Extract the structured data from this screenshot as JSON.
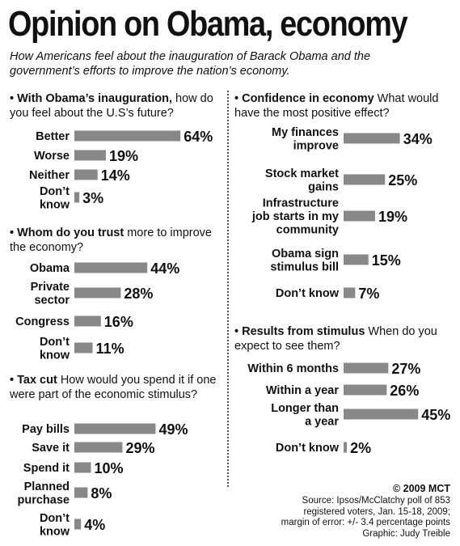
{
  "title": "Opinion on Obama, economy",
  "subtitle": "How Americans feel about the inauguration of Barack Obama and the government’s efforts to improve the nation’s economy.",
  "copyright": "© 2009 MCT",
  "source_lines": [
    "Source: Ipsos/McClatchy poll of 853",
    "registered voters, Jan. 15-18, 2009;",
    "margin of error: +/- 3.4 percentage points",
    "Graphic: Judy Treible"
  ],
  "colors": {
    "bar": "#888888",
    "text": "#111111"
  },
  "chart_data": [
    {
      "type": "bar",
      "orientation": "horizontal",
      "lead": "• With Obama’s inauguration,",
      "question": " how do you feel about the U.S’s future?",
      "categories": [
        [
          "Better"
        ],
        [
          "Worse"
        ],
        [
          "Neither"
        ],
        [
          "Don’t",
          "know"
        ]
      ],
      "values": [
        64,
        19,
        14,
        3
      ],
      "value_labels": [
        "64%",
        "19%",
        "14%",
        "3%"
      ],
      "unit": "%"
    },
    {
      "type": "bar",
      "orientation": "horizontal",
      "lead": "• Whom do you trust",
      "question": " more to improve the economy?",
      "categories": [
        [
          "Obama"
        ],
        [
          "Private",
          "sector"
        ],
        [
          "Congress"
        ],
        [
          "Don’t",
          "know"
        ]
      ],
      "values": [
        44,
        28,
        16,
        11
      ],
      "value_labels": [
        "44%",
        "28%",
        "16%",
        "11%"
      ],
      "unit": "%"
    },
    {
      "type": "bar",
      "orientation": "horizontal",
      "lead": "• Tax cut",
      "question": " How would you spend it if one were part of the economic stimulus?",
      "categories": [
        [
          "Pay bills"
        ],
        [
          "Save it"
        ],
        [
          "Spend it"
        ],
        [
          "Planned",
          "purchase"
        ],
        [
          "Don’t",
          "know"
        ]
      ],
      "values": [
        49,
        29,
        10,
        8,
        4
      ],
      "value_labels": [
        "49%",
        "29%",
        "10%",
        "8%",
        "4%"
      ],
      "unit": "%"
    },
    {
      "type": "bar",
      "orientation": "horizontal",
      "lead": "• Confidence in economy",
      "question": " What would have the most positive effect?",
      "categories": [
        [
          "My finances",
          "improve"
        ],
        [
          "Stock market",
          "gains"
        ],
        [
          "Infrastructure",
          "job starts in my",
          "community"
        ],
        [
          "Obama sign",
          "stimulus bill"
        ],
        [
          "Don’t know"
        ]
      ],
      "values": [
        34,
        25,
        19,
        15,
        7
      ],
      "value_labels": [
        "34%",
        "25%",
        "19%",
        "15%",
        "7%"
      ],
      "unit": "%"
    },
    {
      "type": "bar",
      "orientation": "horizontal",
      "lead": "• Results from stimulus",
      "question": " When do you expect to see them?",
      "categories": [
        [
          "Within 6 months"
        ],
        [
          "Within a year"
        ],
        [
          "Longer than",
          "a year"
        ],
        [
          "Don’t know"
        ]
      ],
      "values": [
        27,
        26,
        45,
        2
      ],
      "value_labels": [
        "27%",
        "26%",
        "45%",
        "2%"
      ],
      "unit": "%"
    }
  ]
}
